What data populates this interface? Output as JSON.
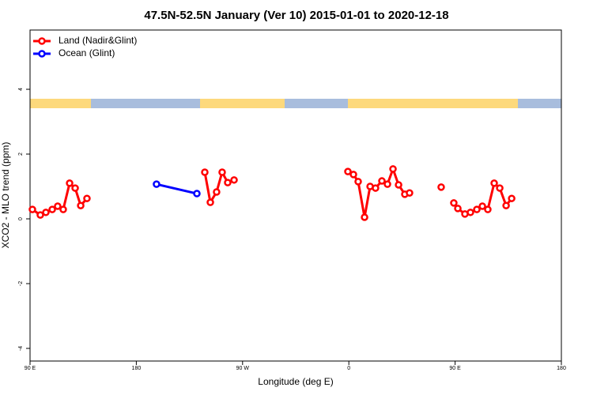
{
  "chart_data": {
    "type": "line",
    "title": "47.5N-52.5N January (Ver 10)   2015-01-01 to 2020-12-18",
    "x_label": "Longitude (deg E)",
    "y_label": "XCO2 - MLO trend (ppm)",
    "xlim": [
      90,
      540
    ],
    "xticks": [
      {
        "value": 90,
        "label": "90 E"
      },
      180,
      {
        "value": 270,
        "label": "90 W"
      },
      {
        "value": 360,
        "label": "0"
      },
      {
        "value": 450,
        "label": "90 E"
      },
      {
        "value": 540,
        "label": "180"
      }
    ],
    "ylim": [
      -4.39,
      5.83
    ],
    "yticks": [
      -4,
      -2,
      0,
      2,
      4
    ],
    "legend": "top-left",
    "series": [
      {
        "name": "Land (Nadir&Glint)",
        "color": "#ff0000",
        "x": [
          92.0,
          98.7,
          103.4,
          108.8,
          113.4,
          118.1,
          123.5,
          128.2,
          132.9,
          138.2,
          null,
          238.0,
          242.7,
          248.0,
          252.7,
          257.4,
          262.8,
          null,
          359.2,
          363.9,
          367.9,
          373.3,
          378.0,
          382.6,
          388.0,
          392.7,
          397.4,
          402.1,
          407.4,
          411.4,
          null,
          438.2,
          null,
          448.9,
          452.3,
          458.3,
          463.0,
          468.4,
          473.1,
          477.7,
          483.1,
          487.8,
          493.2,
          497.9
        ],
        "values": [
          0.29,
          0.12,
          0.2,
          0.29,
          0.39,
          0.29,
          1.1,
          0.95,
          0.41,
          0.63,
          null,
          1.44,
          0.51,
          0.83,
          1.44,
          1.12,
          1.2,
          null,
          1.46,
          1.37,
          1.15,
          0.05,
          1.0,
          0.95,
          1.17,
          1.07,
          1.54,
          1.05,
          0.76,
          0.8,
          null,
          0.98,
          null,
          0.49,
          0.32,
          0.15,
          0.2,
          0.29,
          0.39,
          0.29,
          1.1,
          0.95,
          0.41,
          0.63
        ]
      },
      {
        "name": "Ocean (Glint)",
        "color": "#0000ff",
        "x": [
          197.1,
          231.3
        ],
        "values": [
          1.07,
          0.78
        ]
      }
    ]
  }
}
